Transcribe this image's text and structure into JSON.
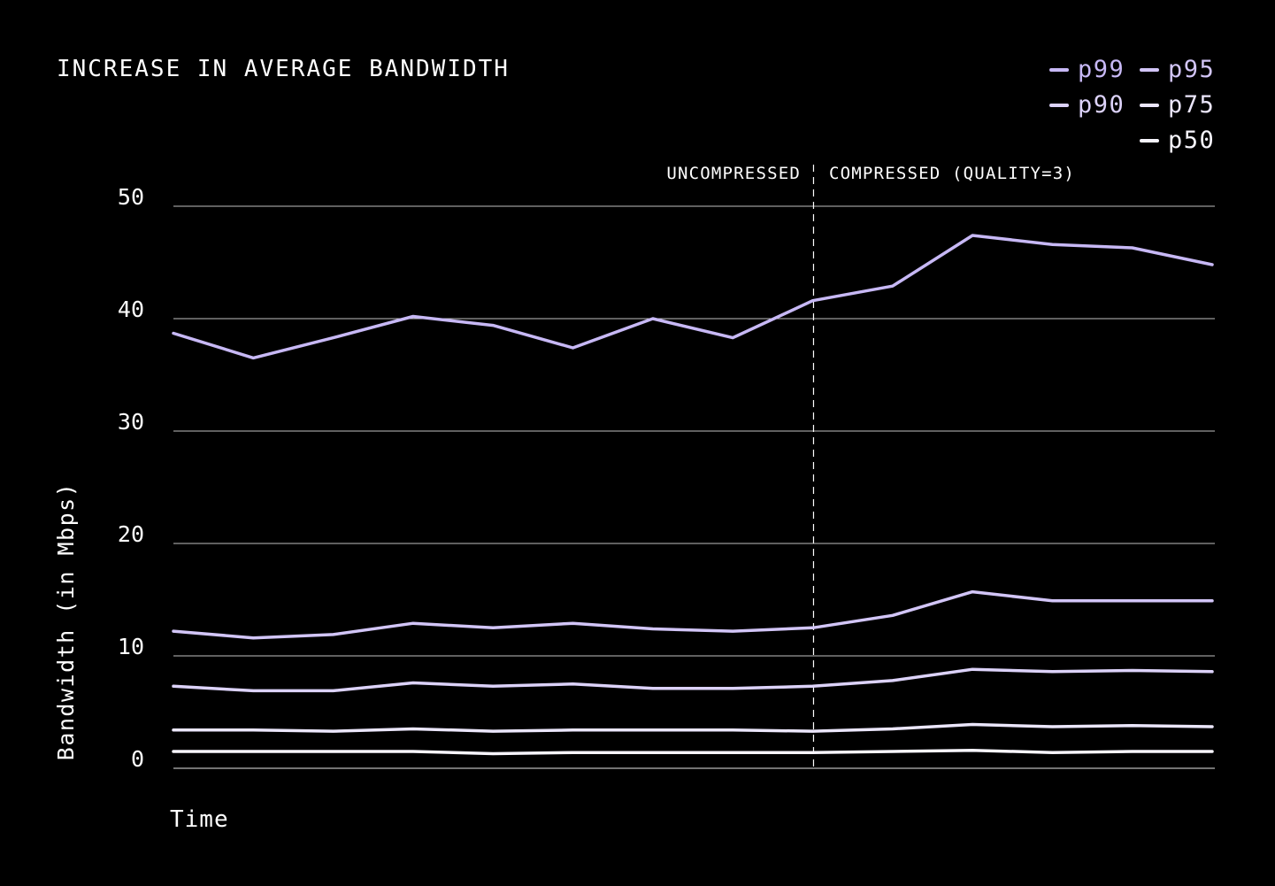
{
  "chart_data": {
    "type": "line",
    "title": "INCREASE IN AVERAGE BANDWIDTH",
    "xlabel": "Time",
    "ylabel": "Bandwidth (in Mbps)",
    "ylim": [
      0,
      50
    ],
    "yticks": [
      "0",
      "10",
      "20",
      "30",
      "40",
      "50"
    ],
    "grid": true,
    "legend_position": "top-right",
    "x": [
      1,
      2,
      3,
      4,
      5,
      6,
      7,
      8,
      9,
      10,
      11,
      12,
      13,
      14
    ],
    "series": [
      {
        "name": "p99",
        "color": "#c7b8f5",
        "values": [
          38.7,
          36.5,
          38.3,
          40.2,
          39.4,
          37.4,
          40.0,
          38.3,
          41.6,
          42.9,
          47.4,
          46.6,
          46.3,
          44.8
        ]
      },
      {
        "name": "p95",
        "color": "#d2c5f7",
        "values": [
          12.2,
          11.6,
          11.9,
          12.9,
          12.5,
          12.9,
          12.4,
          12.2,
          12.5,
          13.6,
          15.7,
          14.9,
          14.9,
          14.9
        ]
      },
      {
        "name": "p90",
        "color": "#dcd2f9",
        "values": [
          7.3,
          6.9,
          6.9,
          7.6,
          7.3,
          7.5,
          7.1,
          7.1,
          7.3,
          7.8,
          8.8,
          8.6,
          8.7,
          8.6
        ]
      },
      {
        "name": "p75",
        "color": "#ebe6fb",
        "values": [
          3.4,
          3.4,
          3.3,
          3.5,
          3.3,
          3.4,
          3.4,
          3.4,
          3.3,
          3.5,
          3.9,
          3.7,
          3.8,
          3.7
        ]
      },
      {
        "name": "p50",
        "color": "#f7f5fd",
        "values": [
          1.5,
          1.5,
          1.5,
          1.5,
          1.3,
          1.4,
          1.4,
          1.4,
          1.4,
          1.5,
          1.6,
          1.4,
          1.5,
          1.5
        ]
      }
    ],
    "annotations": {
      "divider_after_x": 9,
      "left_label": "UNCOMPRESSED",
      "right_label": "COMPRESSED (QUALITY=3)"
    },
    "colors": {
      "background": "#000000",
      "text": "#ffffff",
      "grid": "#ffffff"
    }
  }
}
